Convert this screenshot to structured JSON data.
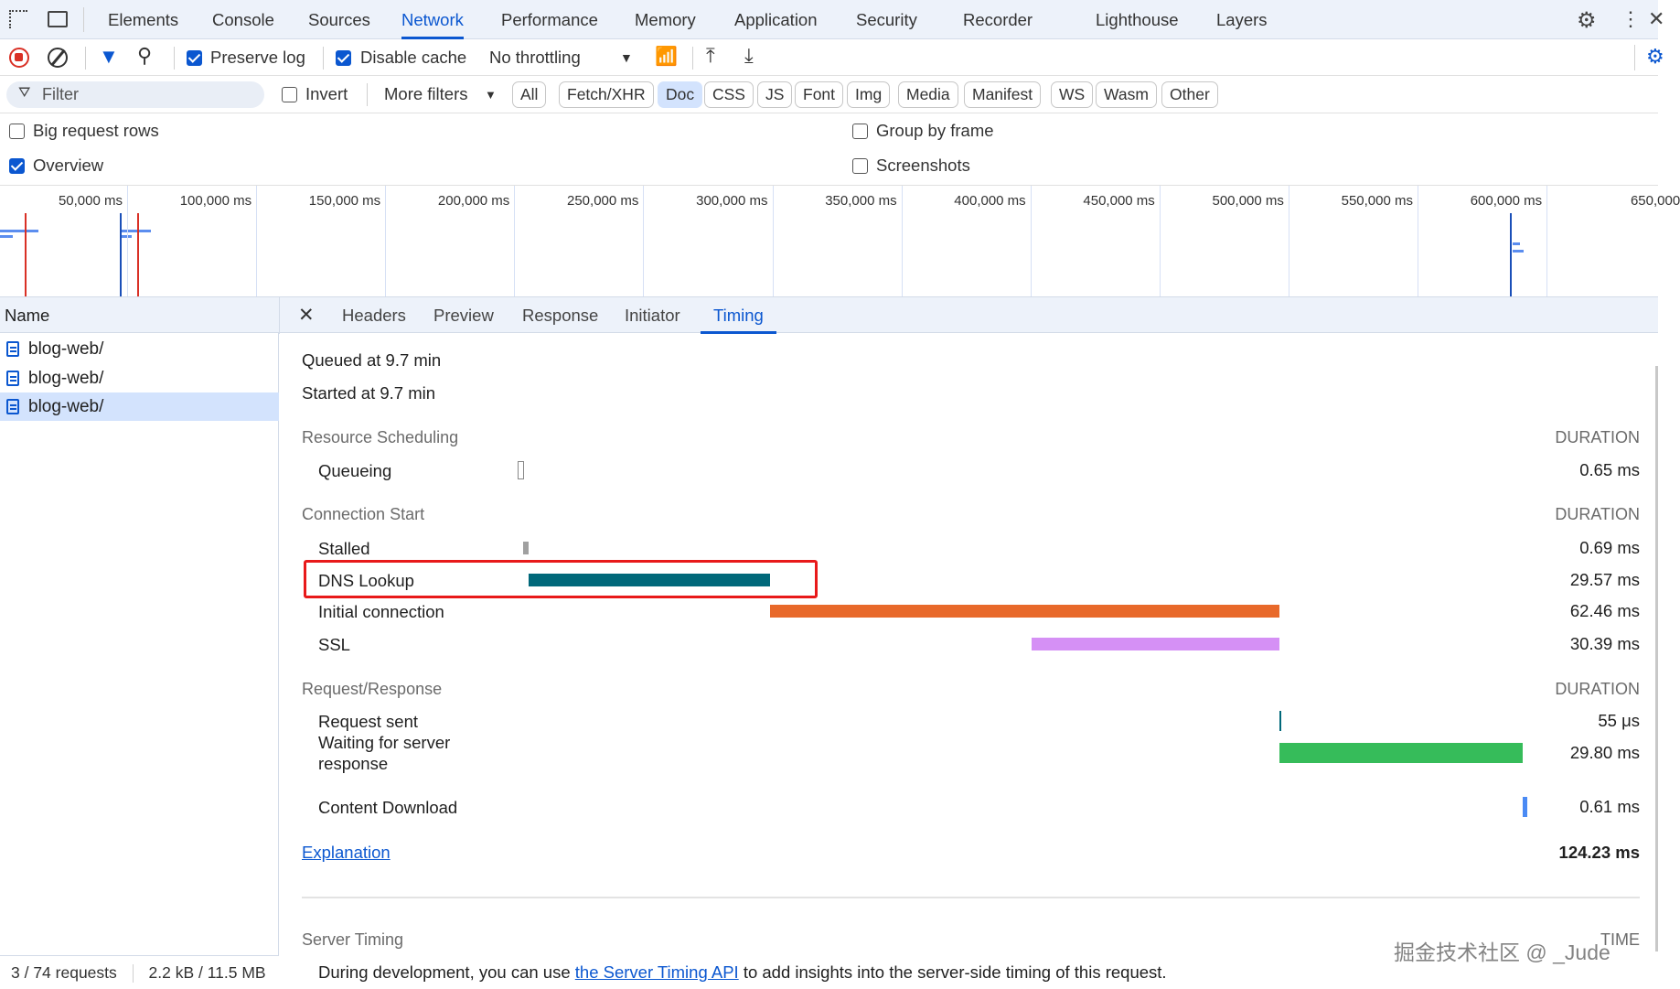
{
  "tabs": [
    "Elements",
    "Console",
    "Sources",
    "Network",
    "Performance",
    "Memory",
    "Application",
    "Security",
    "Recorder",
    "Lighthouse",
    "Layers"
  ],
  "active_tab": "Network",
  "toolbar": {
    "preserve_log": "Preserve log",
    "preserve_log_checked": true,
    "disable_cache": "Disable cache",
    "disable_cache_checked": true,
    "throttling": "No throttling"
  },
  "filter": {
    "placeholder": "Filter",
    "invert": "Invert",
    "more_filters": "More filters",
    "chips": [
      "All",
      "Fetch/XHR",
      "Doc",
      "CSS",
      "JS",
      "Font",
      "Img",
      "Media",
      "Manifest",
      "WS",
      "Wasm",
      "Other"
    ],
    "selected_chip": "Doc"
  },
  "options": {
    "big_rows": "Big request rows",
    "overview": "Overview",
    "group_by_frame": "Group by frame",
    "screenshots": "Screenshots"
  },
  "overview_ticks": [
    "50,000 ms",
    "100,000 ms",
    "150,000 ms",
    "200,000 ms",
    "250,000 ms",
    "300,000 ms",
    "350,000 ms",
    "400,000 ms",
    "450,000 ms",
    "500,000 ms",
    "550,000 ms",
    "600,000 ms",
    "650,000"
  ],
  "name_header": "Name",
  "requests": [
    "blog-web/",
    "blog-web/",
    "blog-web/"
  ],
  "selected_request": 2,
  "detail_tabs": [
    "Headers",
    "Preview",
    "Response",
    "Initiator",
    "Timing"
  ],
  "active_detail_tab": "Timing",
  "timing": {
    "queued": "Queued at 9.7 min",
    "started": "Started at 9.7 min",
    "duration_header": "DURATION",
    "sections": [
      {
        "title": "Resource Scheduling",
        "rows": [
          {
            "label": "Queueing",
            "value": "0.65 ms",
            "ms": 0.65,
            "color": "#ffffff"
          }
        ]
      },
      {
        "title": "Connection Start",
        "rows": [
          {
            "label": "Stalled",
            "value": "0.69 ms",
            "ms": 0.69,
            "color": "#a0a0a0"
          },
          {
            "label": "DNS Lookup",
            "value": "29.57 ms",
            "ms": 29.57,
            "color": "#00687a"
          },
          {
            "label": "Initial connection",
            "value": "62.46 ms",
            "ms": 62.46,
            "color": "#e8692a"
          },
          {
            "label": "SSL",
            "value": "30.39 ms",
            "ms": 30.39,
            "color": "#d590f5"
          }
        ]
      },
      {
        "title": "Request/Response",
        "rows": [
          {
            "label": "Request sent",
            "value": "55 μs",
            "ms": 0.055,
            "color": "#00687a"
          },
          {
            "label": "Waiting for server response",
            "value": "29.80 ms",
            "ms": 29.8,
            "color": "#36bc5a"
          },
          {
            "label": "Content Download",
            "value": "0.61 ms",
            "ms": 0.61,
            "color": "#4a8af4"
          }
        ]
      }
    ],
    "explanation": "Explanation",
    "total": "124.23 ms",
    "total_ms": 124.23,
    "highlight_color": "#e8191a",
    "server_timing": "Server Timing",
    "time_header": "TIME",
    "server_text_before": "During development, you can use ",
    "server_link": "the Server Timing API",
    "server_text_after": " to add insights into the server-side timing of this request."
  },
  "status": {
    "requests": "3 / 74 requests",
    "transferred": "2.2 kB / 11.5 MB"
  },
  "watermark": "掘金技术社区 @ _Jude"
}
